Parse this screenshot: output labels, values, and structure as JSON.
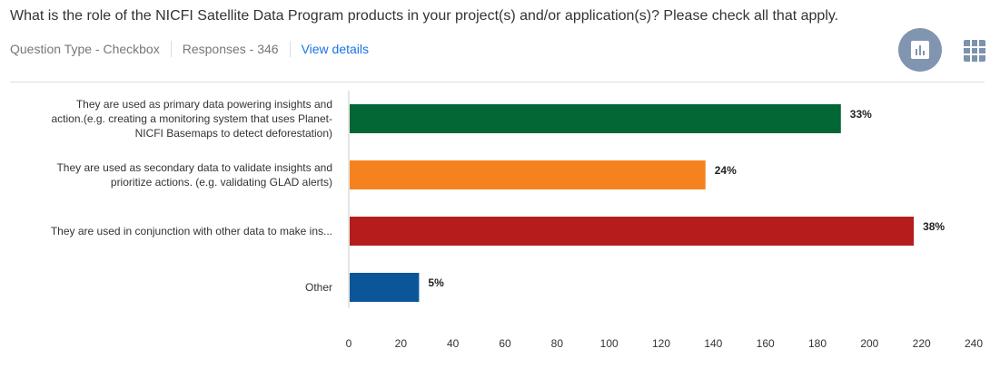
{
  "header": {
    "question": "What is the role of the NICFI Satellite Data Program products in your project(s) and/or application(s)? Please check all that apply.",
    "question_type": "Question Type - Checkbox",
    "responses": "Responses - 346",
    "view_details": "View details"
  },
  "icons": {
    "chart_view": "bar-chart-icon",
    "table_view": "grid-icon"
  },
  "chart_data": {
    "type": "bar",
    "orientation": "horizontal",
    "categories": [
      [
        "They are used as primary data powering insights and",
        "action.(e.g. creating a monitoring system that uses Planet-",
        "NICFI Basemaps to detect deforestation)"
      ],
      [
        "They are used as secondary data to validate insights and",
        "prioritize actions. (e.g. validating GLAD alerts)"
      ],
      [
        "They are used in conjunction with other data to make ins..."
      ],
      [
        "Other"
      ]
    ],
    "values": [
      189,
      137,
      217,
      27
    ],
    "labels": [
      "33%",
      "24%",
      "38%",
      "5%"
    ],
    "colors": [
      "#036635",
      "#f5821f",
      "#b51c1c",
      "#0a5699"
    ],
    "xlim": [
      0,
      240
    ],
    "xticks": [
      "0",
      "20",
      "40",
      "60",
      "80",
      "100",
      "120",
      "140",
      "160",
      "180",
      "200",
      "220",
      "240"
    ]
  }
}
